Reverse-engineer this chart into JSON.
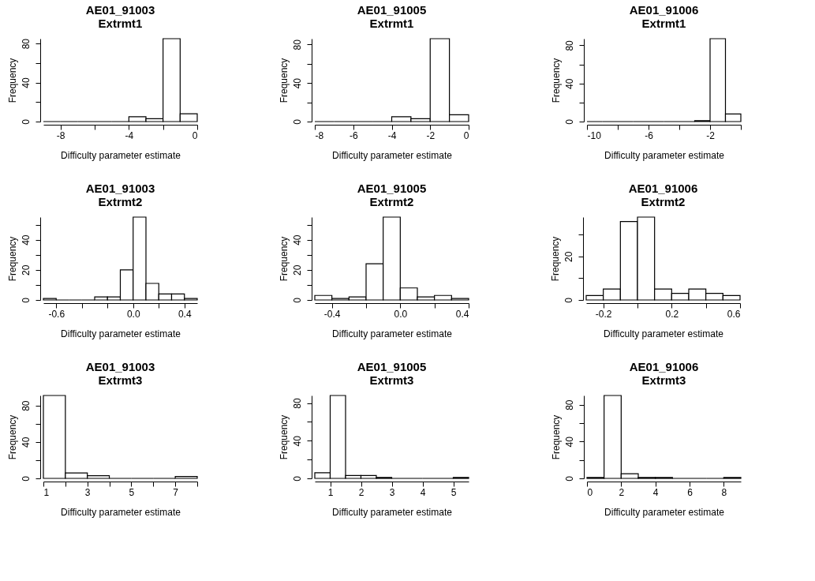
{
  "chart_data": [
    {
      "type": "histogram",
      "title": "AE01_91003",
      "subtitle": "Extrmt1",
      "xlabel": "Difficulty parameter estimate",
      "ylabel": "Frequency",
      "grid": false,
      "bins": [
        -9,
        -8,
        -7,
        -6,
        -5,
        -4,
        -3,
        -2,
        -1,
        0
      ],
      "values": [
        0,
        0,
        0,
        0,
        0,
        5,
        3,
        85,
        8
      ],
      "xlim": [
        -9,
        0
      ],
      "xticks": [
        -8,
        {
          "value": -6,
          "label": null
        },
        -4,
        {
          "value": -2,
          "label": null
        },
        0
      ],
      "ylim": [
        0,
        85
      ],
      "yticks": [
        0,
        {
          "value": 20,
          "label": null
        },
        40,
        {
          "value": 60,
          "label": null
        },
        80
      ]
    },
    {
      "type": "histogram",
      "title": "AE01_91005",
      "subtitle": "Extrmt1",
      "xlabel": "Difficulty parameter estimate",
      "ylabel": "Frequency",
      "grid": false,
      "bins": [
        -8,
        -7,
        -6,
        -5,
        -4,
        -3,
        -2,
        -1,
        0
      ],
      "values": [
        0,
        0,
        0,
        0,
        5,
        3,
        86,
        7
      ],
      "xlim": [
        -8,
        0
      ],
      "xticks": [
        -8,
        -6,
        -4,
        -2,
        0
      ],
      "ylim": [
        0,
        86
      ],
      "yticks": [
        0,
        {
          "value": 20,
          "label": null
        },
        40,
        {
          "value": 60,
          "label": null
        },
        80
      ]
    },
    {
      "type": "histogram",
      "title": "AE01_91006",
      "subtitle": "Extrmt1",
      "xlabel": "Difficulty parameter estimate",
      "ylabel": "Frequency",
      "grid": false,
      "bins": [
        -10,
        -9,
        -8,
        -7,
        -6,
        -5,
        -4,
        -3,
        -2,
        -1,
        0
      ],
      "values": [
        0,
        0,
        0,
        0,
        0,
        0,
        0,
        1,
        87,
        8
      ],
      "xlim": [
        -10,
        0
      ],
      "xticks": [
        -10,
        {
          "value": -8,
          "label": null
        },
        -6,
        {
          "value": -4,
          "label": null
        },
        -2,
        {
          "value": 0,
          "label": null
        }
      ],
      "ylim": [
        0,
        87
      ],
      "yticks": [
        0,
        {
          "value": 20,
          "label": null
        },
        40,
        {
          "value": 60,
          "label": null
        },
        80
      ]
    },
    {
      "type": "histogram",
      "title": "AE01_91003",
      "subtitle": "Extrmt2",
      "xlabel": "Difficulty parameter estimate",
      "ylabel": "Frequency",
      "grid": false,
      "bins": [
        -0.7,
        -0.6,
        -0.5,
        -0.4,
        -0.3,
        -0.2,
        -0.1,
        0,
        0.1,
        0.2,
        0.3,
        0.4,
        0.5
      ],
      "values": [
        1,
        0,
        0,
        0,
        2,
        2,
        20,
        55,
        11,
        4,
        4,
        1
      ],
      "xlim": [
        -0.7,
        0.5
      ],
      "xticks": [
        -0.6,
        {
          "value": -0.4,
          "label": null
        },
        {
          "value": -0.2,
          "label": null
        },
        {
          "value": 0,
          "label": "0.0"
        },
        {
          "value": 0.2,
          "label": null
        },
        0.4
      ],
      "ylim": [
        0,
        55
      ],
      "yticks": [
        0,
        {
          "value": 10,
          "label": null
        },
        20,
        {
          "value": 30,
          "label": null
        },
        40,
        {
          "value": 50,
          "label": null
        }
      ]
    },
    {
      "type": "histogram",
      "title": "AE01_91005",
      "subtitle": "Extrmt2",
      "xlabel": "Difficulty parameter estimate",
      "ylabel": "Frequency",
      "grid": false,
      "bins": [
        -0.5,
        -0.4,
        -0.3,
        -0.2,
        -0.1,
        0,
        0.1,
        0.2,
        0.3,
        0.4
      ],
      "values": [
        3,
        1,
        2,
        24,
        55,
        8,
        2,
        3,
        1
      ],
      "xlim": [
        -0.5,
        0.4
      ],
      "xticks": [
        -0.4,
        {
          "value": -0.2,
          "label": null
        },
        {
          "value": 0,
          "label": "0.0"
        },
        {
          "value": 0.2,
          "label": null
        },
        0.4
      ],
      "ylim": [
        0,
        55
      ],
      "yticks": [
        0,
        {
          "value": 10,
          "label": null
        },
        20,
        {
          "value": 30,
          "label": null
        },
        40,
        {
          "value": 50,
          "label": null
        }
      ]
    },
    {
      "type": "histogram",
      "title": "AE01_91006",
      "subtitle": "Extrmt2",
      "xlabel": "Difficulty parameter estimate",
      "ylabel": "Frequency",
      "grid": false,
      "bins": [
        -0.3,
        -0.2,
        -0.1,
        0,
        0.1,
        0.2,
        0.3,
        0.4,
        0.5,
        0.6
      ],
      "values": [
        2,
        5,
        36,
        38,
        5,
        3,
        5,
        3,
        2
      ],
      "xlim": [
        -0.3,
        0.6
      ],
      "xticks": [
        -0.2,
        {
          "value": 0,
          "label": null
        },
        0.2,
        {
          "value": 0.4,
          "label": null
        },
        0.6
      ],
      "ylim": [
        0,
        38
      ],
      "yticks": [
        0,
        {
          "value": 10,
          "label": null
        },
        20,
        {
          "value": 30,
          "label": null
        }
      ]
    },
    {
      "type": "histogram",
      "title": "AE01_91003",
      "subtitle": "Extrmt3",
      "xlabel": "Difficulty parameter estimate",
      "ylabel": "Frequency",
      "grid": false,
      "bins": [
        1,
        2,
        3,
        4,
        5,
        6,
        7,
        8
      ],
      "values": [
        91,
        6,
        3,
        0,
        0,
        0,
        2
      ],
      "xlim": [
        1,
        8
      ],
      "xticks": [
        1,
        {
          "value": 2,
          "label": null
        },
        3,
        {
          "value": 4,
          "label": null
        },
        5,
        {
          "value": 6,
          "label": null
        },
        7,
        {
          "value": 8,
          "label": null
        }
      ],
      "ylim": [
        0,
        91
      ],
      "yticks": [
        0,
        {
          "value": 20,
          "label": null
        },
        40,
        {
          "value": 60,
          "label": null
        },
        80
      ]
    },
    {
      "type": "histogram",
      "title": "AE01_91005",
      "subtitle": "Extrmt3",
      "xlabel": "Difficulty parameter estimate",
      "ylabel": "Frequency",
      "grid": false,
      "bins": [
        0.5,
        1,
        1.5,
        2,
        2.5,
        3,
        3.5,
        4,
        4.5,
        5,
        5.5
      ],
      "values": [
        6,
        88,
        3,
        3,
        1,
        0,
        0,
        0,
        0,
        1
      ],
      "xlim": [
        0.5,
        5.5
      ],
      "xticks": [
        1,
        2,
        3,
        4,
        5
      ],
      "ylim": [
        0,
        88
      ],
      "yticks": [
        0,
        {
          "value": 20,
          "label": null
        },
        40,
        {
          "value": 60,
          "label": null
        },
        80
      ]
    },
    {
      "type": "histogram",
      "title": "AE01_91006",
      "subtitle": "Extrmt3",
      "xlabel": "Difficulty parameter estimate",
      "ylabel": "Frequency",
      "grid": false,
      "bins": [
        0,
        1,
        2,
        3,
        4,
        5,
        6,
        7,
        8,
        9
      ],
      "values": [
        1,
        90,
        5,
        1,
        1,
        0,
        0,
        0,
        1
      ],
      "xlim": [
        0,
        9
      ],
      "xticks": [
        0,
        2,
        4,
        6,
        8
      ],
      "ylim": [
        0,
        90
      ],
      "yticks": [
        0,
        {
          "value": 20,
          "label": null
        },
        40,
        {
          "value": 60,
          "label": null
        },
        80
      ]
    }
  ]
}
